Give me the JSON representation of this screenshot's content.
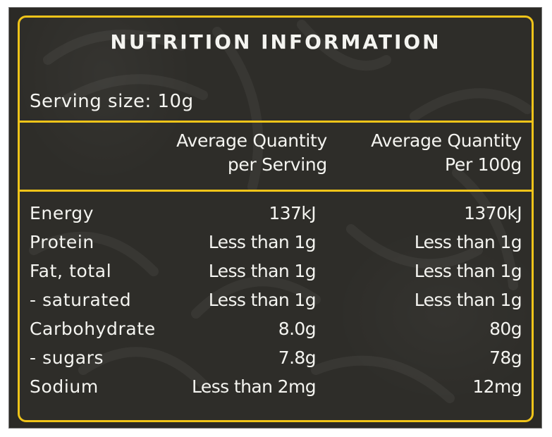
{
  "panel": {
    "title": "NUTRITION INFORMATION",
    "serving_size": "Serving size: 10g",
    "border_color": "#f0c419",
    "background_color": "#2e2d29"
  },
  "columns": {
    "per_serving": {
      "line1": "Average Quantity",
      "line2": "per Serving"
    },
    "per_100g": {
      "line1": "Average Quantity",
      "line2": "Per 100g"
    }
  },
  "rows": [
    {
      "label": "Energy",
      "per_serving": "137kJ",
      "per_100g": "1370kJ"
    },
    {
      "label": "Protein",
      "per_serving": "Less than 1g",
      "per_100g": "Less than 1g"
    },
    {
      "label": "Fat, total",
      "per_serving": "Less than 1g",
      "per_100g": "Less than 1g"
    },
    {
      "label": "- saturated",
      "per_serving": "Less than 1g",
      "per_100g": "Less than 1g"
    },
    {
      "label": "Carbohydrate",
      "per_serving": "8.0g",
      "per_100g": "80g"
    },
    {
      "label": "- sugars",
      "per_serving": "7.8g",
      "per_100g": "78g"
    },
    {
      "label": "Sodium",
      "per_serving": "Less than 2mg",
      "per_100g": "12mg"
    }
  ]
}
